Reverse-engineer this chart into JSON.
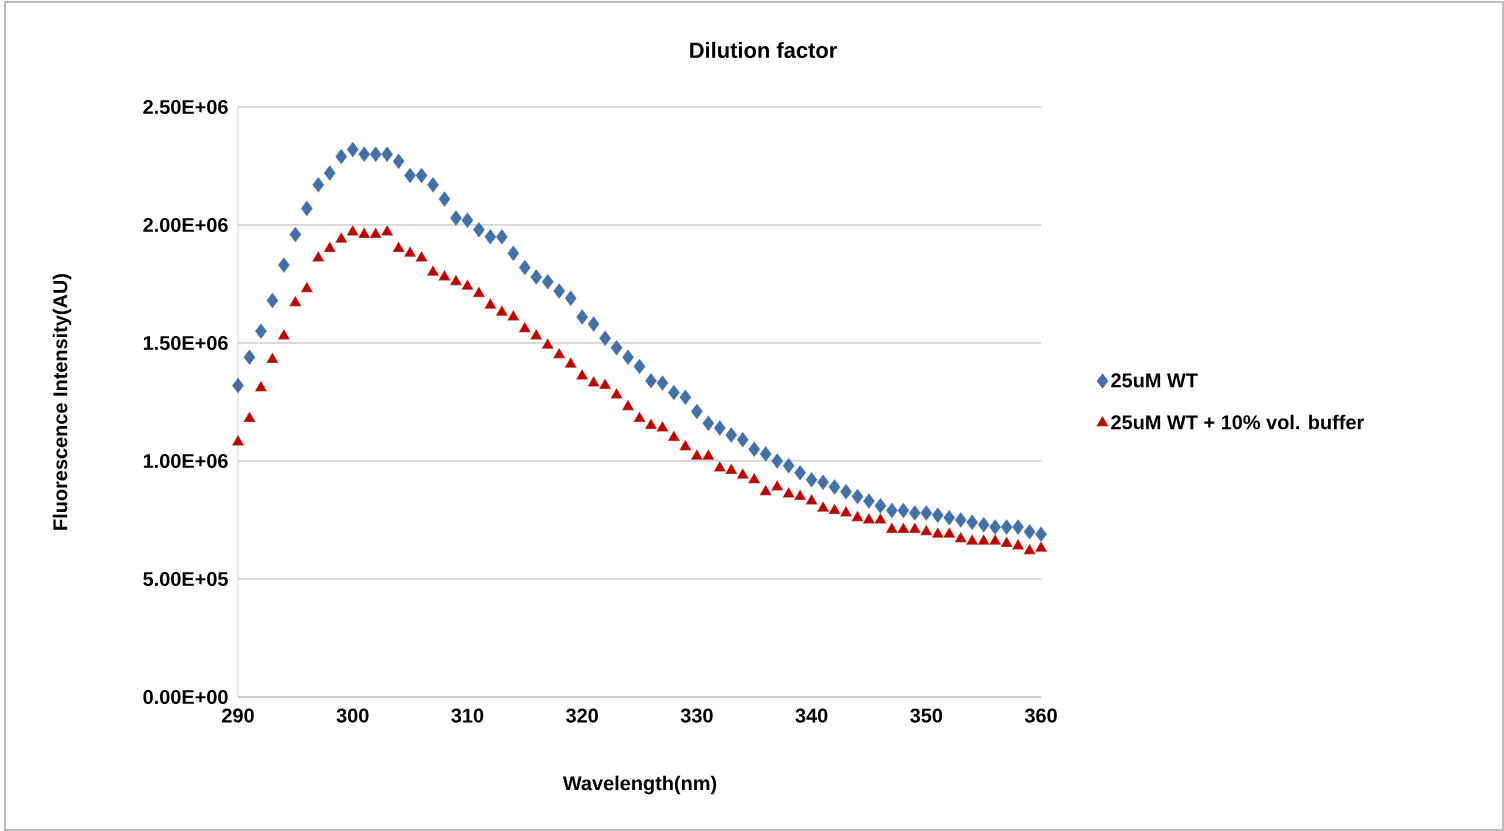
{
  "chart_data": {
    "type": "scatter",
    "title": "Dilution factor",
    "xlabel": "Wavelength(nm)",
    "ylabel": "Fluorescence Intensity(AU)",
    "x": [
      290,
      291,
      292,
      293,
      294,
      295,
      296,
      297,
      298,
      299,
      300,
      301,
      302,
      303,
      304,
      305,
      306,
      307,
      308,
      309,
      310,
      311,
      312,
      313,
      314,
      315,
      316,
      317,
      318,
      319,
      320,
      321,
      322,
      323,
      324,
      325,
      326,
      327,
      328,
      329,
      330,
      331,
      332,
      333,
      334,
      335,
      336,
      337,
      338,
      339,
      340,
      341,
      342,
      343,
      344,
      345,
      346,
      347,
      348,
      349,
      350,
      351,
      352,
      353,
      354,
      355,
      356,
      357,
      358,
      359,
      360
    ],
    "series": [
      {
        "name": "25uM WT",
        "color": "#4470a8",
        "marker": "diamond",
        "values": [
          1320000,
          1440000,
          1550000,
          1680000,
          1830000,
          1960000,
          2070000,
          2170000,
          2220000,
          2290000,
          2320000,
          2300000,
          2300000,
          2300000,
          2270000,
          2210000,
          2210000,
          2170000,
          2110000,
          2030000,
          2020000,
          1980000,
          1950000,
          1950000,
          1880000,
          1820000,
          1780000,
          1760000,
          1720000,
          1690000,
          1610000,
          1580000,
          1520000,
          1480000,
          1440000,
          1400000,
          1340000,
          1330000,
          1290000,
          1270000,
          1210000,
          1160000,
          1140000,
          1110000,
          1090000,
          1050000,
          1030000,
          1000000,
          980000,
          950000,
          920000,
          910000,
          890000,
          870000,
          850000,
          830000,
          810000,
          790000,
          790000,
          780000,
          780000,
          770000,
          760000,
          750000,
          740000,
          730000,
          720000,
          720000,
          720000,
          700000,
          690000
        ]
      },
      {
        "name": "25uM WT + 10% vol. buffer",
        "color": "#c00000",
        "marker": "triangle",
        "values": [
          1080000,
          1180000,
          1310000,
          1430000,
          1530000,
          1670000,
          1730000,
          1860000,
          1900000,
          1940000,
          1970000,
          1960000,
          1960000,
          1970000,
          1900000,
          1880000,
          1860000,
          1800000,
          1780000,
          1760000,
          1740000,
          1710000,
          1660000,
          1630000,
          1610000,
          1560000,
          1530000,
          1490000,
          1450000,
          1410000,
          1360000,
          1330000,
          1320000,
          1280000,
          1230000,
          1180000,
          1150000,
          1140000,
          1100000,
          1060000,
          1020000,
          1020000,
          970000,
          960000,
          940000,
          920000,
          870000,
          890000,
          860000,
          850000,
          830000,
          800000,
          790000,
          780000,
          760000,
          750000,
          750000,
          710000,
          710000,
          710000,
          700000,
          690000,
          690000,
          670000,
          660000,
          660000,
          660000,
          650000,
          640000,
          620000,
          630000
        ]
      }
    ],
    "xlim": [
      290,
      360
    ],
    "xticks": [
      290,
      300,
      310,
      320,
      330,
      340,
      350,
      360
    ],
    "ylim": [
      0,
      2500000
    ],
    "yticks": [
      {
        "value": 0,
        "label": "0.00E+00"
      },
      {
        "value": 500000,
        "label": "5.00E+05"
      },
      {
        "value": 1000000,
        "label": "1.00E+06"
      },
      {
        "value": 1500000,
        "label": "1.50E+06"
      },
      {
        "value": 2000000,
        "label": "2.00E+06"
      },
      {
        "value": 2500000,
        "label": "2.50E+06"
      }
    ],
    "grid": "y",
    "legend": "right"
  }
}
